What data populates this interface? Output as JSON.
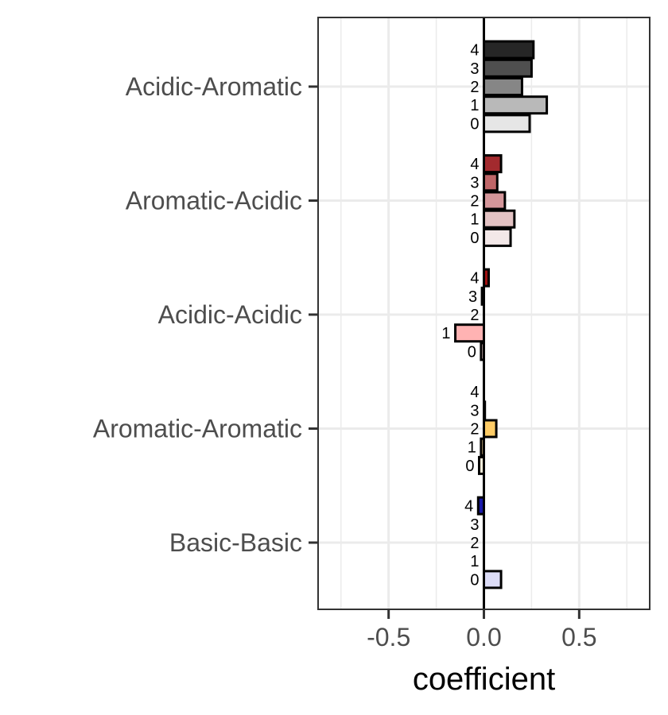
{
  "chart_data": {
    "type": "bar",
    "orientation": "horizontal",
    "xlabel": "coefficient",
    "ylabel": "",
    "xlim": [
      -0.87,
      0.87
    ],
    "x_ticks": [
      -0.5,
      0.0,
      0.5
    ],
    "x_tick_labels": [
      "-0.5",
      "0.0",
      "0.5"
    ],
    "grid": true,
    "legend": "none",
    "groups": [
      {
        "name": "Acidic-Aromatic",
        "bars": [
          {
            "label": "4",
            "value": 0.26,
            "color": "#262626"
          },
          {
            "label": "3",
            "value": 0.25,
            "color": "#4f4f4f"
          },
          {
            "label": "2",
            "value": 0.2,
            "color": "#868686"
          },
          {
            "label": "1",
            "value": 0.33,
            "color": "#b9b9b9"
          },
          {
            "label": "0",
            "value": 0.24,
            "color": "#e6e6e6"
          }
        ]
      },
      {
        "name": "Aromatic-Acidic",
        "bars": [
          {
            "label": "4",
            "value": 0.09,
            "color": "#a32a2e"
          },
          {
            "label": "3",
            "value": 0.07,
            "color": "#bf6668"
          },
          {
            "label": "2",
            "value": 0.11,
            "color": "#d4969a"
          },
          {
            "label": "1",
            "value": 0.16,
            "color": "#e3c2c3"
          },
          {
            "label": "0",
            "value": 0.14,
            "color": "#f3e8e8"
          }
        ]
      },
      {
        "name": "Acidic-Acidic",
        "bars": [
          {
            "label": "4",
            "value": 0.025,
            "color": "#a01010"
          },
          {
            "label": "3",
            "value": -0.01,
            "color": "#c84a4a"
          },
          {
            "label": "2",
            "value": 0.0,
            "color": "#e07a7a"
          },
          {
            "label": "1",
            "value": -0.15,
            "color": "#ffb3b3"
          },
          {
            "label": "0",
            "value": -0.015,
            "color": "#ffe0e0"
          }
        ]
      },
      {
        "name": "Aromatic-Aromatic",
        "bars": [
          {
            "label": "4",
            "value": 0.0,
            "color": "#d4a017"
          },
          {
            "label": "3",
            "value": 0.005,
            "color": "#e8b84a"
          },
          {
            "label": "2",
            "value": 0.065,
            "color": "#ffcc66"
          },
          {
            "label": "1",
            "value": -0.015,
            "color": "#ffe0a0"
          },
          {
            "label": "0",
            "value": -0.025,
            "color": "#fff3dd"
          }
        ]
      },
      {
        "name": "Basic-Basic",
        "bars": [
          {
            "label": "4",
            "value": -0.03,
            "color": "#1a1aaa"
          },
          {
            "label": "3",
            "value": 0.0,
            "color": "#4d4dcc"
          },
          {
            "label": "2",
            "value": 0.0,
            "color": "#8080dd"
          },
          {
            "label": "1",
            "value": 0.0,
            "color": "#b3b3ee"
          },
          {
            "label": "0",
            "value": 0.09,
            "color": "#dcdcf7"
          }
        ]
      }
    ]
  }
}
